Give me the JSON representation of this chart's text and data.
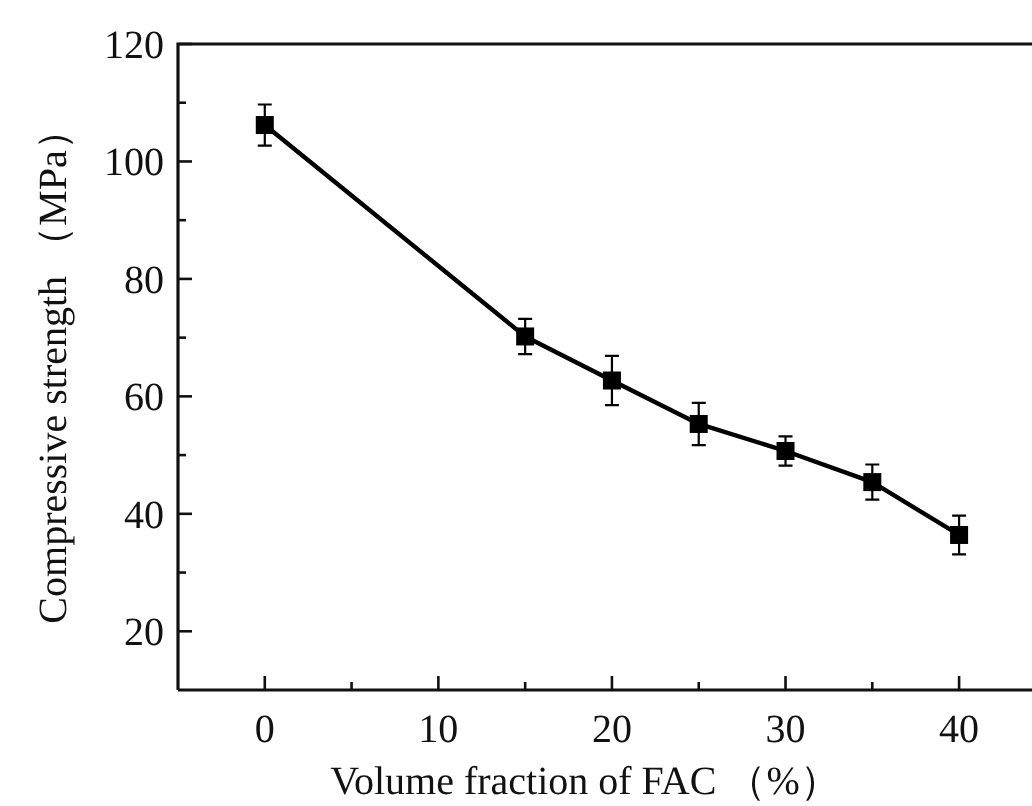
{
  "chart_data": {
    "type": "line",
    "xlabel": "Volume fraction of FAC （%）",
    "ylabel": "Compressive strength （MPa）",
    "x": [
      0,
      15,
      20,
      25,
      30,
      35,
      40
    ],
    "series": [
      {
        "color": "#000000",
        "values": [
          106.2,
          70.2,
          62.7,
          55.3,
          50.7,
          45.4,
          36.4
        ],
        "errors": [
          3.5,
          3,
          4.2,
          3.6,
          2.5,
          3,
          3.3
        ]
      }
    ],
    "xlim": [
      -5,
      44.2
    ],
    "ylim": [
      10,
      120
    ],
    "xticks": [
      0,
      {
        "value": 5,
        "label": null
      },
      10,
      {
        "value": 15,
        "label": null
      },
      20,
      {
        "value": 25,
        "label": null
      },
      30,
      {
        "value": 35,
        "label": null
      },
      40
    ],
    "yticks": [
      20,
      {
        "value": 30,
        "label": null
      },
      40,
      {
        "value": 50,
        "label": null
      },
      60,
      {
        "value": 70,
        "label": null
      },
      80,
      {
        "value": 90,
        "label": null
      },
      100,
      {
        "value": 110,
        "label": null
      },
      120
    ],
    "marker": "square",
    "line_style": "solid"
  }
}
